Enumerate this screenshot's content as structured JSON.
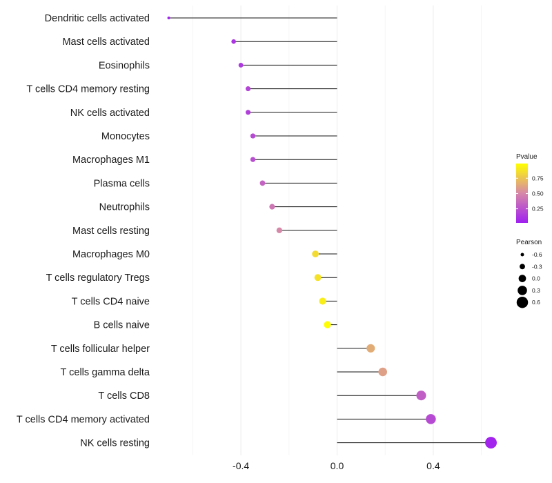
{
  "chart_data": {
    "type": "lollipop",
    "categories": [
      "Dendritic cells activated",
      "Mast cells activated",
      "Eosinophils",
      "T cells CD4 memory resting",
      "NK cells activated",
      "Monocytes",
      "Macrophages M1",
      "Plasma cells",
      "Neutrophils",
      "Mast cells resting",
      "Macrophages M0",
      "T cells regulatory  Tregs ",
      "T cells CD4 naive",
      "B cells naive",
      "T cells follicular helper",
      "T cells gamma delta",
      "T cells CD8",
      "T cells CD4 memory activated",
      "NK cells resting"
    ],
    "values": [
      -0.7,
      -0.43,
      -0.4,
      -0.37,
      -0.37,
      -0.35,
      -0.35,
      -0.31,
      -0.27,
      -0.24,
      -0.09,
      -0.08,
      -0.06,
      -0.04,
      0.14,
      0.19,
      0.35,
      0.39,
      0.64
    ],
    "pvalues": [
      0.01,
      0.1,
      0.12,
      0.18,
      0.15,
      0.2,
      0.22,
      0.32,
      0.42,
      0.5,
      0.85,
      0.88,
      0.93,
      0.99,
      0.65,
      0.6,
      0.3,
      0.2,
      0.02
    ],
    "xlabel": "",
    "ylabel": "",
    "xlim": [
      -0.8,
      0.72
    ],
    "x_ticks": [
      -0.4,
      0.0,
      0.4
    ],
    "x_tick_labels": [
      "-0.4",
      "0.0",
      "0.4"
    ],
    "grid": true,
    "legend": {
      "placement": "right",
      "color": {
        "title": "Pvalue",
        "ticks": [
          0.75,
          0.5,
          0.25
        ],
        "tick_labels": [
          "0.75",
          "0.50",
          "0.25"
        ],
        "low_color": "#a020f0",
        "high_color": "#ffff00"
      },
      "size": {
        "title": "Pearson",
        "values": [
          -0.6,
          -0.3,
          0.0,
          0.3,
          0.6
        ],
        "labels": [
          "-0.6",
          "-0.3",
          "0.0",
          "0.3",
          "0.6"
        ]
      }
    }
  }
}
